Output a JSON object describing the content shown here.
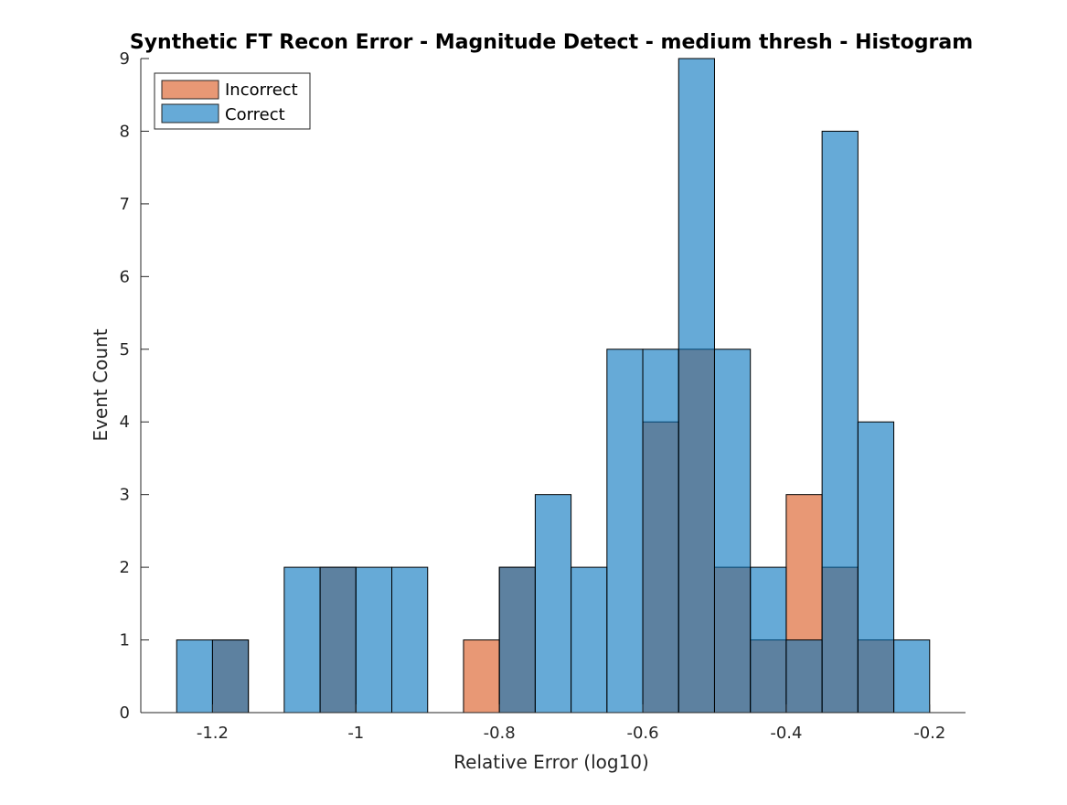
{
  "chart_data": {
    "type": "bar",
    "subtype": "overlaid-histogram",
    "title": "Synthetic FT Recon Error - Magnitude Detect - medium thresh - Histogram",
    "xlabel": "Relative Error (log10)",
    "ylabel": "Event Count",
    "xlim": [
      -1.3,
      -0.15
    ],
    "ylim": [
      0,
      9
    ],
    "xticks": [
      -1.2,
      -1,
      -0.8,
      -0.6,
      -0.4,
      -0.2
    ],
    "xtick_labels": [
      "-1.2",
      "-1",
      "-0.8",
      "-0.6",
      "-0.4",
      "-0.2"
    ],
    "yticks": [
      0,
      1,
      2,
      3,
      4,
      5,
      6,
      7,
      8,
      9
    ],
    "ytick_labels": [
      "0",
      "1",
      "2",
      "3",
      "4",
      "5",
      "6",
      "7",
      "8",
      "9"
    ],
    "grid": false,
    "legend_position": "top-left",
    "bin_edges": [
      -1.25,
      -1.2,
      -1.15,
      -1.1,
      -1.05,
      -1.0,
      -0.95,
      -0.9,
      -0.85,
      -0.8,
      -0.75,
      -0.7,
      -0.65,
      -0.6,
      -0.55,
      -0.5,
      -0.45,
      -0.4,
      -0.35,
      -0.3,
      -0.25,
      -0.2
    ],
    "series": [
      {
        "name": "Incorrect",
        "color": "#d95319",
        "values": [
          0,
          1,
          0,
          0,
          2,
          0,
          0,
          0,
          1,
          2,
          0,
          0,
          0,
          4,
          5,
          2,
          1,
          3,
          2,
          1,
          0
        ]
      },
      {
        "name": "Correct",
        "color": "#0072bd",
        "values": [
          1,
          1,
          0,
          2,
          2,
          2,
          2,
          0,
          0,
          2,
          3,
          2,
          5,
          5,
          9,
          5,
          2,
          1,
          8,
          4,
          1
        ]
      }
    ],
    "face_alpha": 0.6
  }
}
